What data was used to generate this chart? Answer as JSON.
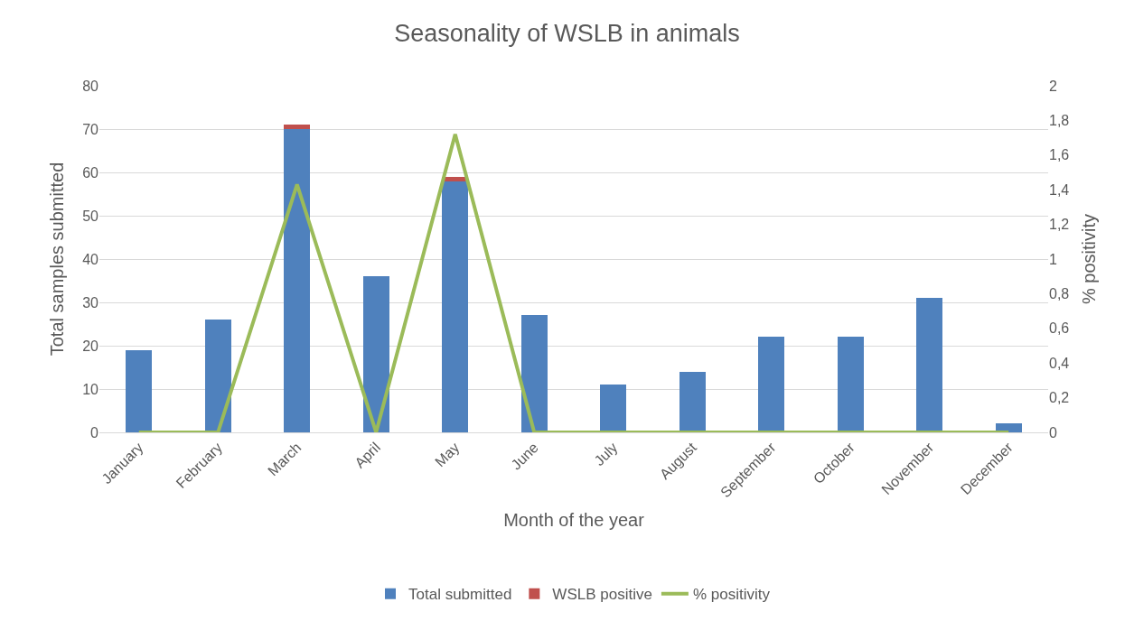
{
  "chart_data": {
    "type": "bar",
    "title": "Seasonality of WSLB in animals",
    "xlabel": "Month of the year",
    "ylabel": "Total samples submitted",
    "y2label": "% positivity",
    "categories": [
      "January",
      "February",
      "March",
      "April",
      "May",
      "June",
      "July",
      "August",
      "September",
      "October",
      "November",
      "December"
    ],
    "stacked": true,
    "series": [
      {
        "name": "Total submitted",
        "color": "#4f81bd",
        "values": [
          19,
          26,
          70,
          36,
          58,
          27,
          11,
          14,
          22,
          22,
          31,
          2
        ]
      },
      {
        "name": "WSLB positive",
        "color": "#c0504d",
        "values": [
          0,
          0,
          1,
          0,
          1,
          0,
          0,
          0,
          0,
          0,
          0,
          0
        ]
      },
      {
        "name": "% positivity",
        "type": "line",
        "axis": "y2",
        "color": "#9bbb59",
        "values": [
          0,
          0,
          1.43,
          0,
          1.72,
          0,
          0,
          0,
          0,
          0,
          0,
          0
        ]
      }
    ],
    "ylim": [
      0,
      80
    ],
    "yticks": [
      0,
      10,
      20,
      30,
      40,
      50,
      60,
      70,
      80
    ],
    "y2lim": [
      0,
      2
    ],
    "y2ticks": [
      0,
      {
        "value": 0.2,
        "label": "0,2"
      },
      {
        "value": 0.4,
        "label": "0,4"
      },
      {
        "value": 0.6,
        "label": "0,6"
      },
      {
        "value": 0.8,
        "label": "0,8"
      },
      1,
      {
        "value": 1.2,
        "label": "1,2"
      },
      {
        "value": 1.4,
        "label": "1,4"
      },
      {
        "value": 1.6,
        "label": "1,6"
      },
      {
        "value": 1.8,
        "label": "1,8"
      },
      2
    ],
    "grid": "y",
    "legend": "bottom",
    "marker": "none",
    "line_style": "solid"
  }
}
